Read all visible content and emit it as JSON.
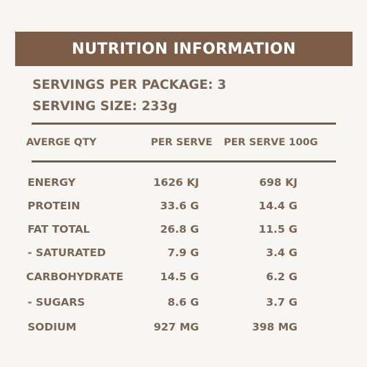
{
  "title": "NUTRITION INFORMATION",
  "servings_per_package": "SERVINGS PER PACKAGE: 3",
  "serving_size": "SERVING SIZE: 233g",
  "headers": {
    "qty": "AVERGE QTY",
    "per_serve": "PER SERVE",
    "per_100": "PER SERVE  100G"
  },
  "rows": [
    {
      "name": "ENERGY",
      "per_serve": "1626 KJ",
      "per_100": "698 KJ"
    },
    {
      "name": "PROTEIN",
      "per_serve": "33.6 G",
      "per_100": "14.4 G"
    },
    {
      "name": "FAT TOTAL",
      "per_serve": "26.8 G",
      "per_100": "11.5 G"
    },
    {
      "name": "-  SATURATED",
      "per_serve": "7.9 G",
      "per_100": "3.4 G"
    },
    {
      "name": "CARBOHYDRATE",
      "per_serve": "14.5 G",
      "per_100": "6.2 G"
    },
    {
      "name": "-  SUGARS",
      "per_serve": "8.6 G",
      "per_100": "3.7 G"
    },
    {
      "name": "SODIUM",
      "per_serve": "927 MG",
      "per_100": "398 MG"
    }
  ],
  "colors": {
    "banner": "#7b5d4a",
    "text": "#7a6656",
    "background": "#f8f6f2"
  }
}
